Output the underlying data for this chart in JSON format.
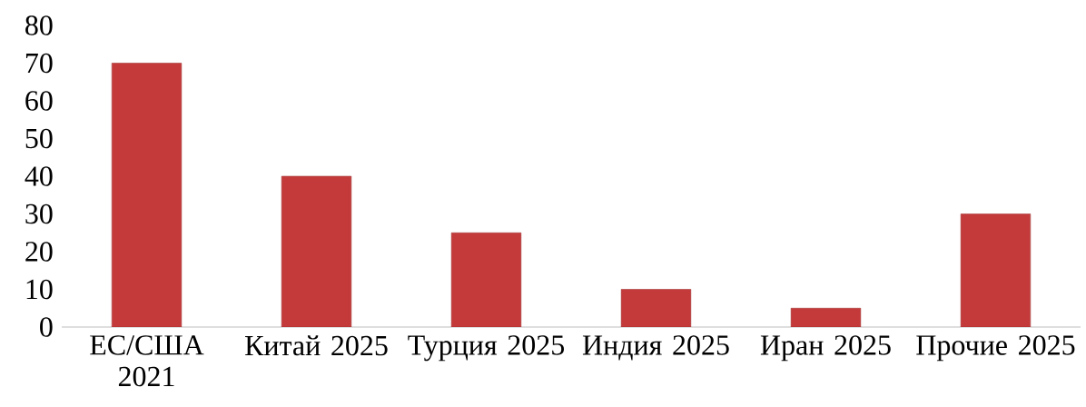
{
  "chart_data": {
    "type": "bar",
    "categories": [
      "ЕС/США 2021",
      "Китай 2025",
      "Турция 2025",
      "Индия 2025",
      "Иран 2025",
      "Прочие 2025"
    ],
    "values": [
      70,
      40,
      25,
      10,
      5,
      30
    ],
    "color": "#c43a3a",
    "ylim": [
      0,
      80
    ],
    "yticks": [
      0,
      10,
      20,
      30,
      40,
      50,
      60,
      70,
      80
    ]
  }
}
